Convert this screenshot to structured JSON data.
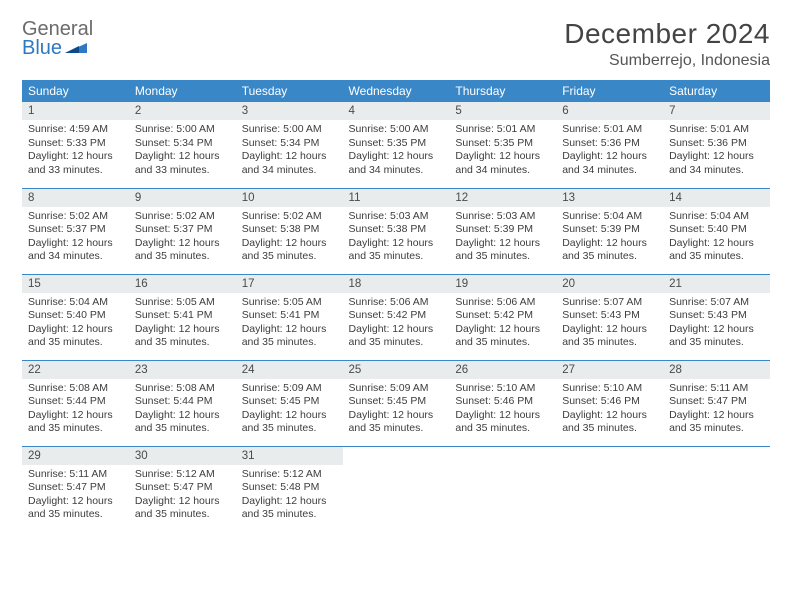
{
  "logo": {
    "general": "General",
    "blue": "Blue"
  },
  "title": "December 2024",
  "location": "Sumberrejo, Indonesia",
  "weekdays": [
    "Sunday",
    "Monday",
    "Tuesday",
    "Wednesday",
    "Thursday",
    "Friday",
    "Saturday"
  ],
  "colors": {
    "header_bg": "#3a87c7",
    "header_fg": "#ffffff",
    "daynum_bg": "#e9eced",
    "row_border": "#3a87c7",
    "logo_general": "#6b6b6b",
    "logo_blue": "#2f78c4"
  },
  "days": [
    {
      "n": 1,
      "sr": "4:59 AM",
      "ss": "5:33 PM",
      "dl": "12 hours and 33 minutes."
    },
    {
      "n": 2,
      "sr": "5:00 AM",
      "ss": "5:34 PM",
      "dl": "12 hours and 33 minutes."
    },
    {
      "n": 3,
      "sr": "5:00 AM",
      "ss": "5:34 PM",
      "dl": "12 hours and 34 minutes."
    },
    {
      "n": 4,
      "sr": "5:00 AM",
      "ss": "5:35 PM",
      "dl": "12 hours and 34 minutes."
    },
    {
      "n": 5,
      "sr": "5:01 AM",
      "ss": "5:35 PM",
      "dl": "12 hours and 34 minutes."
    },
    {
      "n": 6,
      "sr": "5:01 AM",
      "ss": "5:36 PM",
      "dl": "12 hours and 34 minutes."
    },
    {
      "n": 7,
      "sr": "5:01 AM",
      "ss": "5:36 PM",
      "dl": "12 hours and 34 minutes."
    },
    {
      "n": 8,
      "sr": "5:02 AM",
      "ss": "5:37 PM",
      "dl": "12 hours and 34 minutes."
    },
    {
      "n": 9,
      "sr": "5:02 AM",
      "ss": "5:37 PM",
      "dl": "12 hours and 35 minutes."
    },
    {
      "n": 10,
      "sr": "5:02 AM",
      "ss": "5:38 PM",
      "dl": "12 hours and 35 minutes."
    },
    {
      "n": 11,
      "sr": "5:03 AM",
      "ss": "5:38 PM",
      "dl": "12 hours and 35 minutes."
    },
    {
      "n": 12,
      "sr": "5:03 AM",
      "ss": "5:39 PM",
      "dl": "12 hours and 35 minutes."
    },
    {
      "n": 13,
      "sr": "5:04 AM",
      "ss": "5:39 PM",
      "dl": "12 hours and 35 minutes."
    },
    {
      "n": 14,
      "sr": "5:04 AM",
      "ss": "5:40 PM",
      "dl": "12 hours and 35 minutes."
    },
    {
      "n": 15,
      "sr": "5:04 AM",
      "ss": "5:40 PM",
      "dl": "12 hours and 35 minutes."
    },
    {
      "n": 16,
      "sr": "5:05 AM",
      "ss": "5:41 PM",
      "dl": "12 hours and 35 minutes."
    },
    {
      "n": 17,
      "sr": "5:05 AM",
      "ss": "5:41 PM",
      "dl": "12 hours and 35 minutes."
    },
    {
      "n": 18,
      "sr": "5:06 AM",
      "ss": "5:42 PM",
      "dl": "12 hours and 35 minutes."
    },
    {
      "n": 19,
      "sr": "5:06 AM",
      "ss": "5:42 PM",
      "dl": "12 hours and 35 minutes."
    },
    {
      "n": 20,
      "sr": "5:07 AM",
      "ss": "5:43 PM",
      "dl": "12 hours and 35 minutes."
    },
    {
      "n": 21,
      "sr": "5:07 AM",
      "ss": "5:43 PM",
      "dl": "12 hours and 35 minutes."
    },
    {
      "n": 22,
      "sr": "5:08 AM",
      "ss": "5:44 PM",
      "dl": "12 hours and 35 minutes."
    },
    {
      "n": 23,
      "sr": "5:08 AM",
      "ss": "5:44 PM",
      "dl": "12 hours and 35 minutes."
    },
    {
      "n": 24,
      "sr": "5:09 AM",
      "ss": "5:45 PM",
      "dl": "12 hours and 35 minutes."
    },
    {
      "n": 25,
      "sr": "5:09 AM",
      "ss": "5:45 PM",
      "dl": "12 hours and 35 minutes."
    },
    {
      "n": 26,
      "sr": "5:10 AM",
      "ss": "5:46 PM",
      "dl": "12 hours and 35 minutes."
    },
    {
      "n": 27,
      "sr": "5:10 AM",
      "ss": "5:46 PM",
      "dl": "12 hours and 35 minutes."
    },
    {
      "n": 28,
      "sr": "5:11 AM",
      "ss": "5:47 PM",
      "dl": "12 hours and 35 minutes."
    },
    {
      "n": 29,
      "sr": "5:11 AM",
      "ss": "5:47 PM",
      "dl": "12 hours and 35 minutes."
    },
    {
      "n": 30,
      "sr": "5:12 AM",
      "ss": "5:47 PM",
      "dl": "12 hours and 35 minutes."
    },
    {
      "n": 31,
      "sr": "5:12 AM",
      "ss": "5:48 PM",
      "dl": "12 hours and 35 minutes."
    }
  ],
  "labels": {
    "sunrise": "Sunrise: ",
    "sunset": "Sunset: ",
    "daylight": "Daylight: "
  }
}
